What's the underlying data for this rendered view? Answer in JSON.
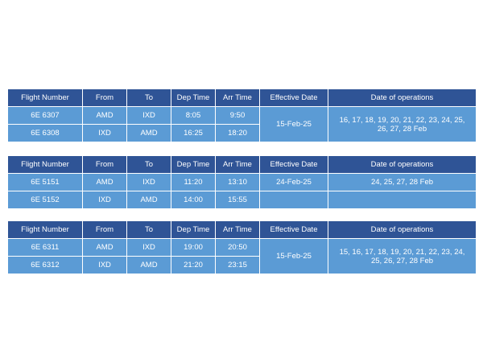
{
  "headers": [
    "Flight Number",
    "From",
    "To",
    "Dep Time",
    "Arr Time",
    "Effective Date",
    "Date of operations"
  ],
  "tables": [
    {
      "rows": [
        {
          "flight": "6E 6307",
          "from": "AMD",
          "to": "IXD",
          "dep": "8:05",
          "arr": "9:50"
        },
        {
          "flight": "6E 6308",
          "from": "IXD",
          "to": "AMD",
          "dep": "16:25",
          "arr": "18:20"
        }
      ],
      "effective_date": "15-Feb-25",
      "date_of_operations": "16, 17, 18, 19, 20, 21, 22, 23, 24, 25, 26, 27, 28 Feb"
    },
    {
      "rows": [
        {
          "flight": "6E 5151",
          "from": "AMD",
          "to": "IXD",
          "dep": "11:20",
          "arr": "13:10",
          "effective_date": "24-Feb-25",
          "date_of_operations": "24, 25, 27, 28 Feb"
        },
        {
          "flight": "6E 5152",
          "from": "IXD",
          "to": "AMD",
          "dep": "14:00",
          "arr": "15:55",
          "effective_date": "",
          "date_of_operations": ""
        }
      ]
    },
    {
      "rows": [
        {
          "flight": "6E 6311",
          "from": "AMD",
          "to": "IXD",
          "dep": "19:00",
          "arr": "20:50"
        },
        {
          "flight": "6E 6312",
          "from": "IXD",
          "to": "AMD",
          "dep": "21:20",
          "arr": "23:15"
        }
      ],
      "effective_date": "15-Feb-25",
      "date_of_operations": "15, 16, 17, 18, 19, 20, 21, 22, 23, 24, 25, 26, 27, 28 Feb"
    }
  ]
}
